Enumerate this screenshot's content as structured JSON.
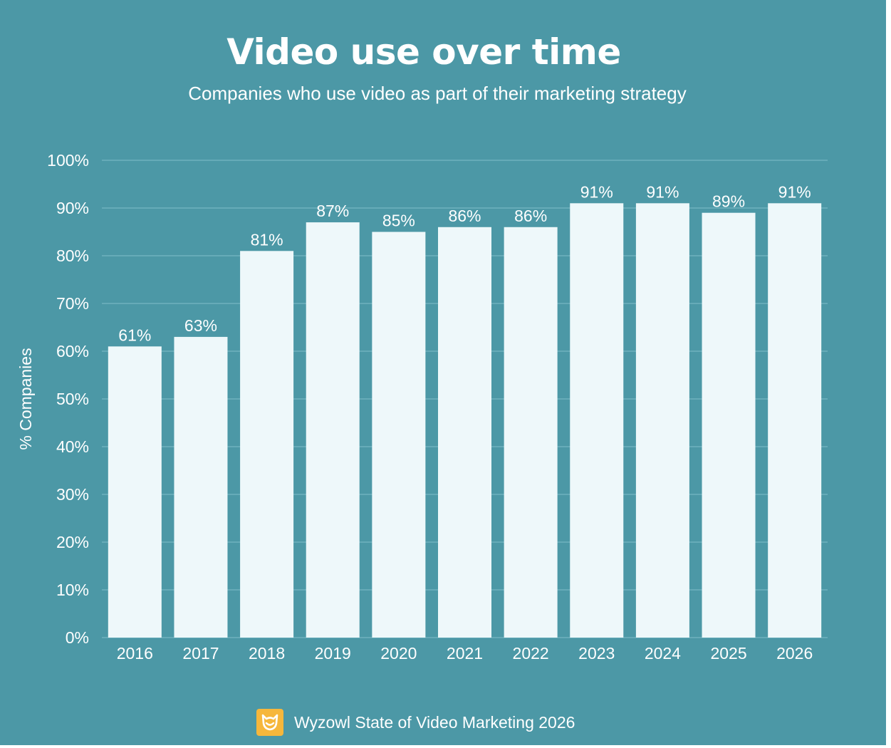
{
  "chart_data": {
    "type": "bar",
    "title": "Video use over time",
    "subtitle": "Companies who use video as part of their marketing strategy",
    "ylabel": "% Companies",
    "xlabel": "",
    "categories": [
      "2016",
      "2017",
      "2018",
      "2019",
      "2020",
      "2021",
      "2022",
      "2023",
      "2024",
      "2025",
      "2026"
    ],
    "values": [
      61,
      63,
      81,
      87,
      85,
      86,
      86,
      91,
      91,
      89,
      91
    ],
    "data_labels": [
      "61%",
      "63%",
      "81%",
      "87%",
      "85%",
      "86%",
      "86%",
      "91%",
      "91%",
      "89%",
      "91%"
    ],
    "ylim": [
      0,
      100
    ],
    "yticks": [
      0,
      10,
      20,
      30,
      40,
      50,
      60,
      70,
      80,
      90,
      100
    ],
    "ytick_labels": [
      "0%",
      "10%",
      "20%",
      "30%",
      "40%",
      "50%",
      "60%",
      "70%",
      "80%",
      "90%",
      "100%"
    ],
    "grid": true,
    "legend": "none"
  },
  "source": {
    "text": "Wyzowl State of Video Marketing 2026",
    "icon": "wyzowl-owl-logo"
  },
  "colors": {
    "background": "#4c98a6",
    "bar": "#eef8fa",
    "gridline": "#6fb1bd",
    "text": "#ffffff",
    "logo": "#f6b73c"
  }
}
